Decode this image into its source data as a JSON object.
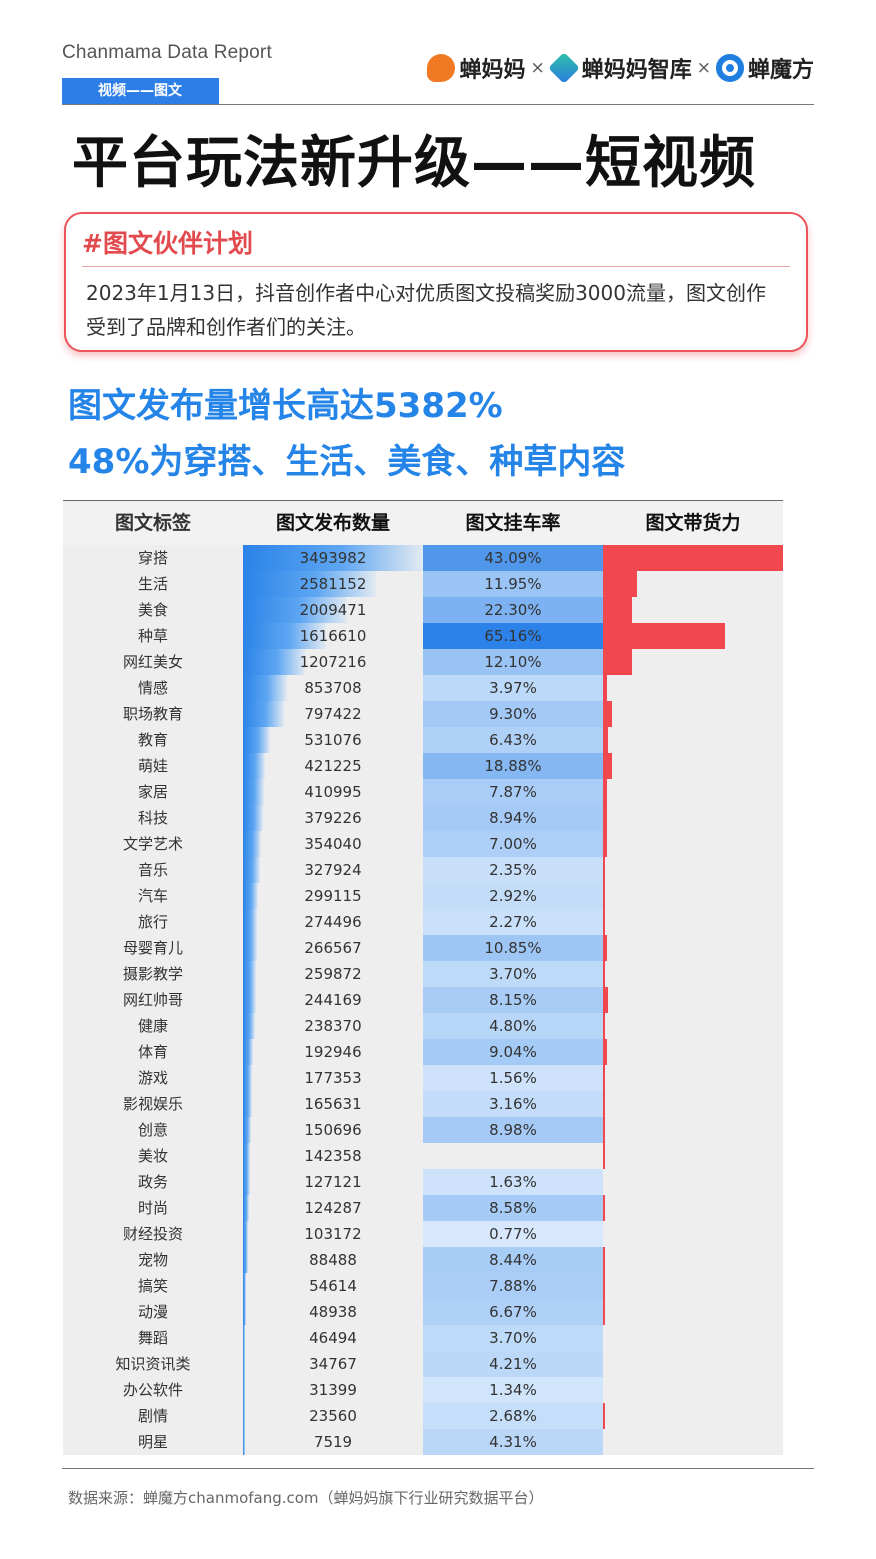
{
  "header": {
    "report_title": "Chanmama Data Report",
    "brands": [
      "蝉妈妈",
      "蝉妈妈智库",
      "蝉魔方"
    ],
    "separator": "×",
    "tag": "视频——图文",
    "main_title": "平台玩法新升级——短视频"
  },
  "callout": {
    "title": "#图文伙伴计划",
    "body": "2023年1月13日，抖音创作者中心对优质图文投稿奖励3000流量，图文创作受到了品牌和创作者们的关注。"
  },
  "highlights": {
    "line1": "图文发布量增长高达5382%",
    "line2": "48%为穿搭、生活、美食、种草内容"
  },
  "colors": {
    "accent_blue": "#2d7fe7",
    "headline_blue": "#2584e8",
    "accent_red": "#e24a4e",
    "power_bar_red": "#f0484e"
  },
  "table": {
    "headers": [
      "图文标签",
      "图文发布数量",
      "图文挂车率",
      "图文带货力"
    ],
    "rows": [
      {
        "tag": "穿搭",
        "count": "3493982",
        "rate": "43.09%",
        "power": 1.0
      },
      {
        "tag": "生活",
        "count": "2581152",
        "rate": "11.95%",
        "power": 0.19
      },
      {
        "tag": "美食",
        "count": "2009471",
        "rate": "22.30%",
        "power": 0.16
      },
      {
        "tag": "种草",
        "count": "1616610",
        "rate": "65.16%",
        "power": 0.68
      },
      {
        "tag": "网红美女",
        "count": "1207216",
        "rate": "12.10%",
        "power": 0.16
      },
      {
        "tag": "情感",
        "count": "853708",
        "rate": "3.97%",
        "power": 0.02
      },
      {
        "tag": "职场教育",
        "count": "797422",
        "rate": "9.30%",
        "power": 0.05
      },
      {
        "tag": "教育",
        "count": "531076",
        "rate": "6.43%",
        "power": 0.03
      },
      {
        "tag": "萌娃",
        "count": "421225",
        "rate": "18.88%",
        "power": 0.05
      },
      {
        "tag": "家居",
        "count": "410995",
        "rate": "7.87%",
        "power": 0.02
      },
      {
        "tag": "科技",
        "count": "379226",
        "rate": "8.94%",
        "power": 0.02
      },
      {
        "tag": "文学艺术",
        "count": "354040",
        "rate": "7.00%",
        "power": 0.02
      },
      {
        "tag": "音乐",
        "count": "327924",
        "rate": "2.35%",
        "power": 0.01
      },
      {
        "tag": "汽车",
        "count": "299115",
        "rate": "2.92%",
        "power": 0.01
      },
      {
        "tag": "旅行",
        "count": "274496",
        "rate": "2.27%",
        "power": 0.01
      },
      {
        "tag": "母婴育儿",
        "count": "266567",
        "rate": "10.85%",
        "power": 0.02
      },
      {
        "tag": "摄影教学",
        "count": "259872",
        "rate": "3.70%",
        "power": 0.01
      },
      {
        "tag": "网红帅哥",
        "count": "244169",
        "rate": "8.15%",
        "power": 0.03
      },
      {
        "tag": "健康",
        "count": "238370",
        "rate": "4.80%",
        "power": 0.01
      },
      {
        "tag": "体育",
        "count": "192946",
        "rate": "9.04%",
        "power": 0.02
      },
      {
        "tag": "游戏",
        "count": "177353",
        "rate": "1.56%",
        "power": 0.005
      },
      {
        "tag": "影视娱乐",
        "count": "165631",
        "rate": "3.16%",
        "power": 0.01
      },
      {
        "tag": "创意",
        "count": "150696",
        "rate": "8.98%",
        "power": 0.01
      },
      {
        "tag": "美妆",
        "count": "142358",
        "rate": "",
        "power": 0.01
      },
      {
        "tag": "政务",
        "count": "127121",
        "rate": "1.63%",
        "power": 0.0
      },
      {
        "tag": "时尚",
        "count": "124287",
        "rate": "8.58%",
        "power": 0.005
      },
      {
        "tag": "财经投资",
        "count": "103172",
        "rate": "0.77%",
        "power": 0.0
      },
      {
        "tag": "宠物",
        "count": "88488",
        "rate": "8.44%",
        "power": 0.005
      },
      {
        "tag": "搞笑",
        "count": "54614",
        "rate": "7.88%",
        "power": 0.005
      },
      {
        "tag": "动漫",
        "count": "48938",
        "rate": "6.67%",
        "power": 0.005
      },
      {
        "tag": "舞蹈",
        "count": "46494",
        "rate": "3.70%",
        "power": 0.0
      },
      {
        "tag": "知识资讯类",
        "count": "34767",
        "rate": "4.21%",
        "power": 0.0
      },
      {
        "tag": "办公软件",
        "count": "31399",
        "rate": "1.34%",
        "power": 0.0
      },
      {
        "tag": "剧情",
        "count": "23560",
        "rate": "2.68%",
        "power": 0.005
      },
      {
        "tag": "明星",
        "count": "7519",
        "rate": "4.31%",
        "power": 0.0
      }
    ]
  },
  "footer": {
    "source": "数据来源：蝉魔方chanmofang.com（蝉妈妈旗下行业研究数据平台）"
  }
}
